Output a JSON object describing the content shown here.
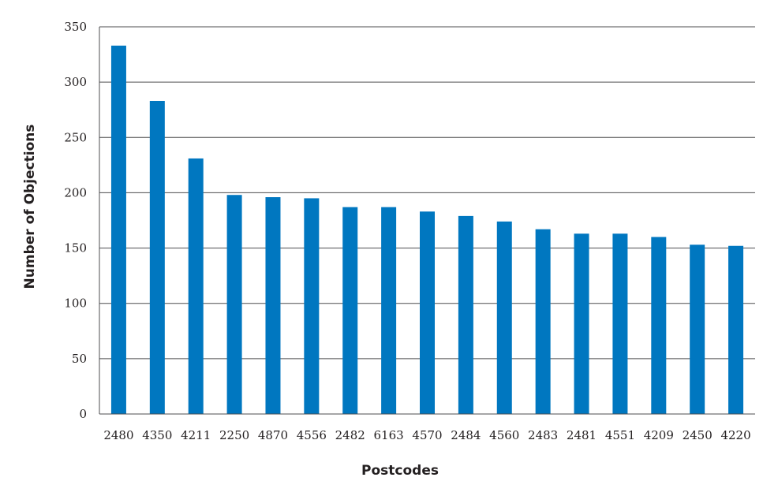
{
  "chart_data": {
    "type": "bar",
    "title": "",
    "xlabel": "Postcodes",
    "ylabel": "Number of Objections",
    "categories": [
      "2480",
      "4350",
      "4211",
      "2250",
      "4870",
      "4556",
      "2482",
      "6163",
      "4570",
      "2484",
      "4560",
      "2483",
      "2481",
      "4551",
      "4209",
      "2450",
      "4220"
    ],
    "values": [
      333,
      283,
      231,
      198,
      196,
      195,
      187,
      187,
      183,
      179,
      174,
      167,
      163,
      163,
      160,
      153,
      152
    ],
    "ylim": [
      0,
      350
    ],
    "yticks": [
      0,
      50,
      100,
      150,
      200,
      250,
      300,
      350
    ],
    "grid": true,
    "legend": "none",
    "colors": {
      "bar": "#0077c0",
      "grid": "#4d4d4f",
      "axis": "#4d4d4f",
      "text": "#231f20"
    }
  }
}
